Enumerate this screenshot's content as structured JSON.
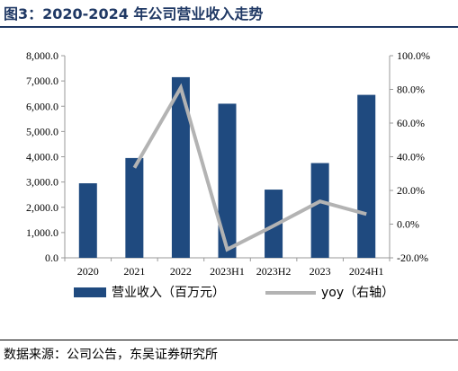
{
  "figure": {
    "title": "图3：2020-2024 年公司营业收入走势",
    "source": "数据来源：公司公告，东吴证券研究所"
  },
  "colors": {
    "title": "#1f3864",
    "bar": "#1f4a7f",
    "line": "#b3b3b3",
    "axis": "#999999"
  },
  "chart_data": {
    "type": "bar",
    "categories": [
      "2020",
      "2021",
      "2022",
      "2023H1",
      "2023H2",
      "2023",
      "2024H1"
    ],
    "series": [
      {
        "name": "营业收入（百万元）",
        "type": "bar",
        "axis": "left",
        "values": [
          2950,
          3950,
          7150,
          6100,
          2700,
          3750,
          6450
        ]
      },
      {
        "name": "yoy（右轴）",
        "type": "line",
        "axis": "right",
        "values": [
          null,
          33.5,
          81.0,
          -15.0,
          -1.0,
          13.5,
          6.0
        ]
      }
    ],
    "y_left": {
      "range": [
        0,
        8000
      ],
      "ticks": [
        "0.0",
        "1,000.0",
        "2,000.0",
        "3,000.0",
        "4,000.0",
        "5,000.0",
        "6,000.0",
        "7,000.0",
        "8,000.0"
      ]
    },
    "y_right": {
      "range": [
        -20,
        100
      ],
      "ticks": [
        "-20.0%",
        "0.0%",
        "20.0%",
        "40.0%",
        "60.0%",
        "80.0%",
        "100.0%"
      ]
    },
    "grid": false,
    "legend": "bottom"
  }
}
